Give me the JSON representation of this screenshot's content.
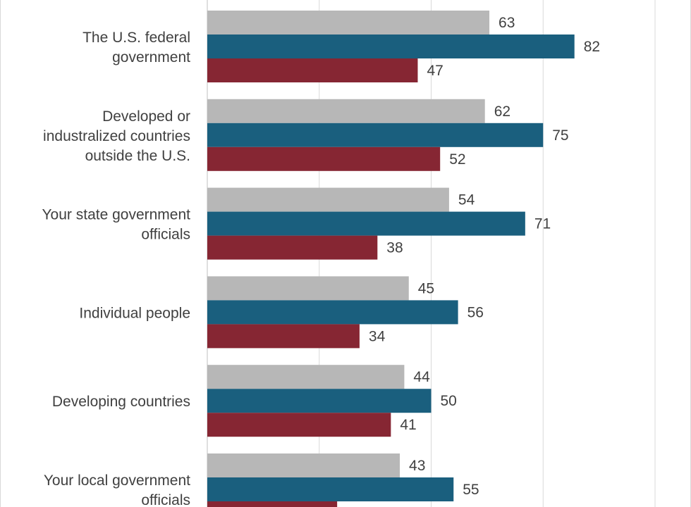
{
  "colors": {
    "series_1": "#b7b7b7",
    "series_2": "#1a5f7e",
    "series_3": "#862633"
  },
  "chart_data": {
    "type": "bar",
    "orientation": "horizontal",
    "categories": [
      [
        "The U.S. federal",
        "government"
      ],
      [
        "Developed or",
        "industralized countries",
        "outside the U.S."
      ],
      [
        "Your state government",
        "officials"
      ],
      [
        "Individual people"
      ],
      [
        "Developing countries"
      ],
      [
        "Your local government",
        "officials"
      ]
    ],
    "series": [
      {
        "values": [
          63,
          62,
          54,
          45,
          44,
          43
        ]
      },
      {
        "values": [
          82,
          75,
          71,
          56,
          50,
          55
        ]
      },
      {
        "values": [
          47,
          52,
          38,
          34,
          41,
          29
        ]
      }
    ],
    "xlim": [
      0,
      100
    ],
    "grid": true,
    "legend": "none"
  }
}
